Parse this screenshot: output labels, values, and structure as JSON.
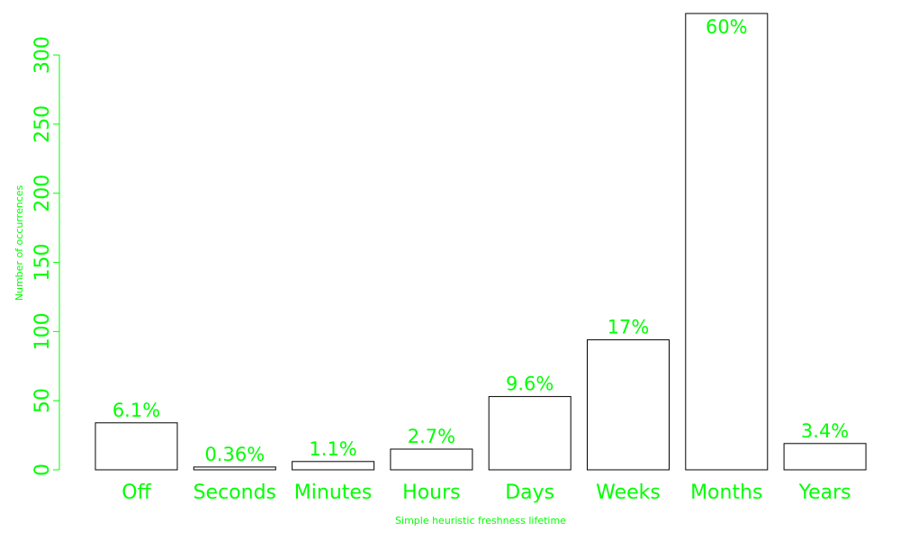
{
  "chart_data": {
    "type": "bar",
    "categories": [
      "Off",
      "Seconds",
      "Minutes",
      "Hours",
      "Days",
      "Weeks",
      "Months",
      "Years"
    ],
    "values": [
      34,
      2,
      6,
      15,
      53,
      94,
      330,
      19
    ],
    "labels": [
      "6.1%",
      "0.36%",
      "1.1%",
      "2.7%",
      "9.6%",
      "17%",
      "60%",
      "3.4%"
    ],
    "title": "",
    "xlabel": "Simple heuristic freshness lifetime",
    "ylabel": "Number of occurrences",
    "ylim": [
      0,
      330
    ],
    "yticks": [
      0,
      50,
      100,
      150,
      200,
      250,
      300
    ],
    "grid": false,
    "legend": "none"
  },
  "colors": {
    "text": "#00ff00",
    "bar_fill": "#ffffff",
    "bar_stroke": "#000000"
  }
}
